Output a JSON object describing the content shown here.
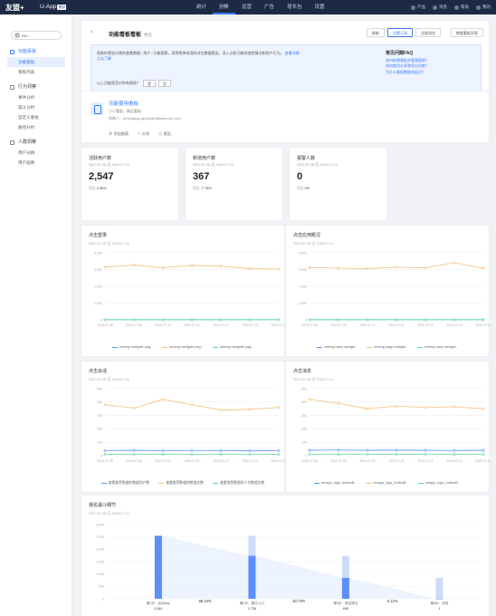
{
  "topbar": {
    "logo": "友盟+",
    "product": "U-App",
    "product_badge": "统计",
    "nav": [
      {
        "label": "统计",
        "active": false
      },
      {
        "label": "分析",
        "active": true
      },
      {
        "label": "运营",
        "active": false
      },
      {
        "label": "广告",
        "active": false
      },
      {
        "label": "增长包",
        "active": false
      },
      {
        "label": "设置",
        "active": false
      }
    ],
    "right": [
      "产品",
      "消息",
      "帮助",
      "我的"
    ]
  },
  "sidebar": {
    "app_name": "Elic...",
    "groups": [
      {
        "title": "功能看板",
        "active": true,
        "items": [
          {
            "label": "功能看板",
            "active": true
          },
          {
            "label": "看板列表",
            "active": false
          }
        ]
      },
      {
        "title": "行为洞察",
        "active": false,
        "items": [
          {
            "label": "事件分析",
            "active": false
          },
          {
            "label": "漏斗分析",
            "active": false
          },
          {
            "label": "自定义看板",
            "active": false
          },
          {
            "label": "路径分析",
            "active": false
          }
        ]
      },
      {
        "title": "人群洞察",
        "active": false,
        "items": [
          {
            "label": "用户分群",
            "active": false
          },
          {
            "label": "用户画像",
            "active": false
          }
        ]
      }
    ]
  },
  "header": {
    "title": "功能看板看板",
    "tag": "预览",
    "buttons": [
      "刷新",
      "设置订阅",
      "全屏浏览",
      "数据看板列表"
    ],
    "info_text": "帮助你更加方便的查看数据 / 用户 / 功能图表，获得简单快速的对比数据报告，深入分析功能的使用情况和用户行为。",
    "info_link": "查看详情",
    "info_more": "点击了解",
    "question": "以上功能是否对你有帮助？",
    "yes": "是",
    "no": "否",
    "faq_title": "常见问题FAQ",
    "faq": [
      "如何新建看板并管理图表？",
      "如何使用分享和导出功能？",
      "为什么看板数据有延迟？"
    ]
  },
  "board": {
    "name": "功能使用看板",
    "line1": "小小看板，精品看板",
    "line2": "创建人：umengapp.app@ali.alibaba-inc.com",
    "actions": [
      "添加图表",
      "分享",
      "报告"
    ]
  },
  "kpis": [
    {
      "title": "活跃用户数",
      "date": "2020-07-08 至 2020-07-14",
      "value": "2,547",
      "delta_label": "环比",
      "delta": "2.36%"
    },
    {
      "title": "新增用户数",
      "date": "2020-07-08 至 2020-07-14",
      "value": "367",
      "delta_label": "环比",
      "delta": "-7.78%"
    },
    {
      "title": "报警人数",
      "date": "2020-07-08 至 2020-07-14",
      "value": "0",
      "delta_label": "环比",
      "delta": "0%"
    }
  ],
  "charts": [
    {
      "title": "点击登录",
      "date": "2020-07-08 至 2020-07-14",
      "chart_data": {
        "type": "line",
        "x": [
          "2020-07-08",
          "2020-07-09",
          "2020-07-10",
          "2020-07-11",
          "2020-07-12",
          "2020-07-13",
          "2020-07-14"
        ],
        "yticks": [
          "4,000",
          "3,000",
          "2,000",
          "1,000",
          "0"
        ],
        "ylim": [
          0,
          4000
        ],
        "series": [
          {
            "name": "umeng navigate pag...",
            "color": "#5b8ff9",
            "values": [
              10,
              10,
              10,
              10,
              10,
              10,
              10
            ]
          },
          {
            "name": "umeng navigate pag...",
            "color": "#f6bd7a",
            "values": [
              3150,
              3260,
              3110,
              3240,
              3200,
              3050,
              3020
            ]
          },
          {
            "name": "umeng navigate pag...",
            "color": "#5ad8a6",
            "values": [
              5,
              5,
              5,
              5,
              5,
              5,
              5
            ]
          }
        ]
      }
    },
    {
      "title": "点击应用概况",
      "date": "2020-07-08 至 2020-07-14",
      "chart_data": {
        "type": "line",
        "x": [
          "2020-07-08",
          "2020-07-09",
          "2020-07-10",
          "2020-07-11",
          "2020-07-12",
          "2020-07-13",
          "2020-07-14"
        ],
        "yticks": [
          "4,000",
          "3,000",
          "2,000",
          "1,000",
          "0"
        ],
        "ylim": [
          0,
          4000
        ],
        "series": [
          {
            "name": "umeng uapp navigat...",
            "color": "#5b8ff9",
            "values": [
              10,
              10,
              10,
              10,
              10,
              10,
              10
            ]
          },
          {
            "name": "umeng uapp navigat...",
            "color": "#f6bd7a",
            "values": [
              3120,
              3080,
              3050,
              3140,
              3100,
              3400,
              3070
            ]
          },
          {
            "name": "umeng uapp navigat...",
            "color": "#5ad8a6",
            "values": [
              5,
              5,
              5,
              5,
              5,
              5,
              5
            ]
          }
        ]
      }
    },
    {
      "title": "点击会话",
      "date": "2020-07-08 至 2020-07-14",
      "chart_data": {
        "type": "line",
        "x": [
          "2020-07-08",
          "2020-07-09",
          "2020-07-10",
          "2020-07-11",
          "2020-07-12",
          "2020-07-13",
          "2020-07-14"
        ],
        "yticks": [
          "500",
          "400",
          "300",
          "200",
          "100",
          "0"
        ],
        "ylim": [
          0,
          500
        ],
        "series": [
          {
            "name": "查看推荐数据的数据用户数",
            "color": "#5b8ff9",
            "values": [
              38,
              40,
              37,
              39,
              38,
              36,
              37
            ]
          },
          {
            "name": "查看推荐数据的数据次数",
            "color": "#f6bd7a",
            "values": [
              380,
              355,
              420,
              380,
              340,
              345,
              360
            ]
          },
          {
            "name": "查看推荐数据的人均数据次数",
            "color": "#5ad8a6",
            "values": [
              10,
              10,
              10,
              10,
              10,
              10,
              10
            ]
          }
        ]
      }
    },
    {
      "title": "点击消息",
      "date": "2020-07-08 至 2020-07-14",
      "chart_data": {
        "type": "line",
        "x": [
          "2020-07-08",
          "2020-07-09",
          "2020-07-10",
          "2020-07-11",
          "2020-07-12",
          "2020-07-13",
          "2020-07-14"
        ],
        "yticks": [
          "500",
          "400",
          "300",
          "200",
          "100",
          "0"
        ],
        "ylim": [
          0,
          500
        ],
        "series": [
          {
            "name": "umapp_logo_buttonB...",
            "color": "#5b8ff9",
            "values": [
              40,
              42,
              40,
              41,
              40,
              39,
              40
            ]
          },
          {
            "name": "umapp_logo_buttonB...",
            "color": "#f6bd7a",
            "values": [
              420,
              390,
              350,
              370,
              360,
              365,
              350
            ]
          },
          {
            "name": "umapp_logo_buttonB...",
            "color": "#5ad8a6",
            "values": [
              10,
              10,
              10,
              10,
              10,
              10,
              10
            ]
          }
        ]
      }
    }
  ],
  "funnel": {
    "title": "报名漏斗细节",
    "date": "2020-07-08 至 2020-07-14",
    "chart_data": {
      "type": "bar",
      "yticks": [
        "3,000",
        "2,500",
        "2,000",
        "1,500",
        "1,000",
        "500",
        "0"
      ],
      "ylim": [
        0,
        3000
      ],
      "steps": [
        {
          "label": "第1步：启动App",
          "value": 2544,
          "value_label": "2,544"
        },
        {
          "label": "第2步：图片入口",
          "value": 1736,
          "value_label": "1,736"
        },
        {
          "label": "第3步：报名提交",
          "value": 846,
          "value_label": "846"
        },
        {
          "label": "第4步：完成",
          "value": 1,
          "value_label": "1"
        }
      ],
      "conversions": [
        "68.24%",
        "48.73%",
        "0.12%"
      ]
    }
  }
}
